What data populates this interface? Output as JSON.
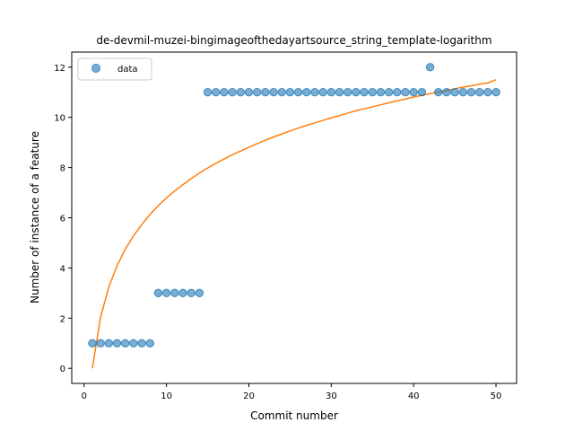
{
  "chart_data": {
    "type": "scatter",
    "title": "de-devmil-muzei-bingimageofthedayartsource_string_template-logarithm",
    "xlabel": "Commit number",
    "ylabel": "Number of instance of a feature",
    "xlim": [
      -1.5,
      52.5
    ],
    "ylim": [
      -0.6,
      12.6
    ],
    "xticks": [
      0,
      10,
      20,
      30,
      40,
      50
    ],
    "yticks": [
      0,
      2,
      4,
      6,
      8,
      10,
      12
    ],
    "grid": false,
    "legend": {
      "position": "top-left",
      "entries": [
        "data"
      ]
    },
    "series": [
      {
        "name": "data",
        "kind": "scatter",
        "color": "#1f77b4",
        "x": [
          1,
          2,
          3,
          4,
          5,
          6,
          7,
          8,
          9,
          10,
          11,
          12,
          13,
          14,
          15,
          16,
          17,
          18,
          19,
          20,
          21,
          22,
          23,
          24,
          25,
          26,
          27,
          28,
          29,
          30,
          31,
          32,
          33,
          34,
          35,
          36,
          37,
          38,
          39,
          40,
          41,
          42,
          43,
          44,
          45,
          46,
          47,
          48,
          49,
          50
        ],
        "y": [
          1,
          1,
          1,
          1,
          1,
          1,
          1,
          1,
          3,
          3,
          3,
          3,
          3,
          3,
          11,
          11,
          11,
          11,
          11,
          11,
          11,
          11,
          11,
          11,
          11,
          11,
          11,
          11,
          11,
          11,
          11,
          11,
          11,
          11,
          11,
          11,
          11,
          11,
          11,
          11,
          11,
          12,
          11,
          11,
          11,
          11,
          11,
          11,
          11,
          11
        ]
      },
      {
        "kind": "line",
        "color": "#ff7f0e",
        "x": [
          1,
          2,
          3,
          4,
          5,
          6,
          7,
          8,
          9,
          10,
          11,
          12,
          13,
          14,
          15,
          16,
          17,
          18,
          19,
          20,
          21,
          22,
          23,
          24,
          25,
          26,
          27,
          28,
          29,
          30,
          31,
          32,
          33,
          34,
          35,
          36,
          37,
          38,
          39,
          40,
          41,
          42,
          43,
          44,
          45,
          46,
          47,
          48,
          49,
          50
        ],
        "y": [
          0.0,
          2.04,
          3.24,
          4.09,
          4.75,
          5.28,
          5.73,
          6.13,
          6.48,
          6.79,
          7.07,
          7.32,
          7.56,
          7.78,
          7.98,
          8.17,
          8.34,
          8.51,
          8.66,
          8.81,
          8.95,
          9.09,
          9.22,
          9.34,
          9.46,
          9.57,
          9.68,
          9.78,
          9.88,
          9.98,
          10.07,
          10.17,
          10.26,
          10.34,
          10.42,
          10.5,
          10.58,
          10.66,
          10.73,
          10.81,
          10.88,
          10.94,
          11.01,
          11.07,
          11.14,
          11.2,
          11.26,
          11.32,
          11.37,
          11.5
        ]
      }
    ]
  }
}
